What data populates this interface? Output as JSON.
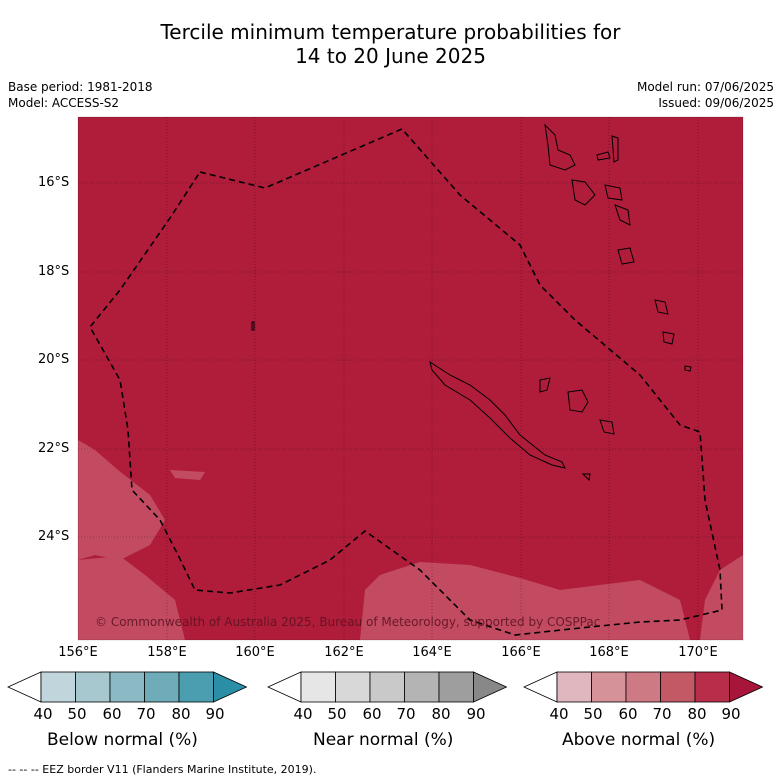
{
  "title": {
    "line1": "Tercile minimum temperature probabilities for",
    "line2": "14 to 20 June 2025"
  },
  "meta": {
    "base_period": "Base period: 1981-2018",
    "model": "Model: ACCESS-S2",
    "model_run": "Model run: 07/06/2025",
    "issued": "Issued: 09/06/2025"
  },
  "axes": {
    "lat_labels": [
      "16°S",
      "18°S",
      "20°S",
      "22°S",
      "24°S"
    ],
    "lon_labels": [
      "156°E",
      "158°E",
      "160°E",
      "162°E",
      "164°E",
      "166°E",
      "168°E",
      "170°E"
    ]
  },
  "copyright": "© Commonwealth of Australia 2025, Bureau of Meteorology, supported by COSPPac",
  "colors": {
    "above_90": "#b01d3b",
    "above_80": "#c24b62",
    "land_outline": "#000000",
    "below": [
      "#c0d6dc",
      "#a7c8cf",
      "#8bbac5",
      "#6eacba",
      "#4a9eb0",
      "#2a8fa6"
    ],
    "near": [
      "#e6e6e6",
      "#d8d8d8",
      "#c9c9c9",
      "#b4b4b4",
      "#9e9e9e",
      "#888888"
    ],
    "above": [
      "#e0b6bf",
      "#d69299",
      "#cd7a84",
      "#c45966",
      "#b82d4a",
      "#a8153a"
    ]
  },
  "legend": {
    "ticks": [
      "40",
      "50",
      "60",
      "70",
      "80",
      "90"
    ],
    "below_title": "Below normal (%)",
    "near_title": "Near normal (%)",
    "above_title": "Above normal (%)"
  },
  "footer": "-- -- -- EEZ border V11 (Flanders Marine Institute, 2019)."
}
